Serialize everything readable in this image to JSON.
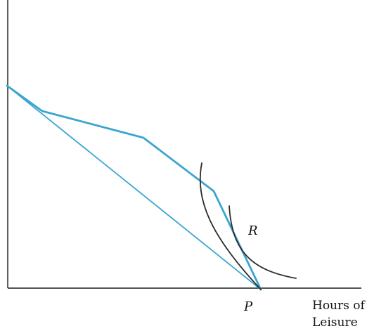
{
  "diagram": {
    "points": {
      "r_label": "R",
      "p_label": "P"
    },
    "x_axis_label": [
      "Hours of",
      "Leisure"
    ],
    "colors": {
      "budget_lines": "#3aa6d0",
      "indifference_curves": "#2b2b2b",
      "axes": "#1a1a1a"
    }
  }
}
